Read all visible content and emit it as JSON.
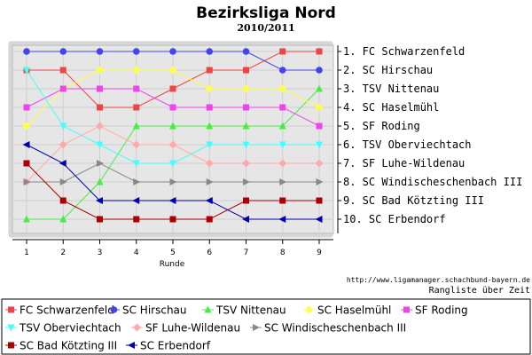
{
  "chart_data": {
    "type": "line",
    "title": "Bezirksliga Nord",
    "subtitle": "2010/2011",
    "xlabel": "Runde",
    "x": [
      1,
      2,
      3,
      4,
      5,
      6,
      7,
      8,
      9
    ],
    "ylim": [
      1,
      10
    ],
    "y_inverted": true,
    "grid": true,
    "ranking_labels": [
      "1. FC Schwarzenfeld",
      "2. SC Hirschau",
      "3. TSV Nittenau",
      "4. SC Haselmühl",
      "5. SF Roding",
      "6. TSV Oberviechtach",
      "7. SF Luhe-Wildenau",
      "8. SC Windischeschenbach III",
      "9. SC Bad Kötzting III",
      "10. SC Erbendorf"
    ],
    "source_url": "http://www.ligamanager.schachbund-bayern.de",
    "caption": "Rangliste über Zeit",
    "legend_position": "bottom",
    "series": [
      {
        "name": "FC Schwarzenfeld",
        "color": "#ee4444",
        "marker": "square",
        "values": [
          2,
          2,
          4,
          4,
          3,
          2,
          2,
          1,
          1
        ]
      },
      {
        "name": "SC Hirschau",
        "color": "#4444ee",
        "marker": "circle",
        "values": [
          1,
          1,
          1,
          1,
          1,
          1,
          1,
          2,
          2
        ]
      },
      {
        "name": "TSV Nittenau",
        "color": "#44ee44",
        "marker": "triangle-up",
        "values": [
          10,
          10,
          8,
          5,
          5,
          5,
          5,
          5,
          3
        ]
      },
      {
        "name": "SC Haselmühl",
        "color": "#ffff44",
        "marker": "diamond",
        "values": [
          5,
          3,
          2,
          2,
          2,
          3,
          3,
          3,
          4
        ]
      },
      {
        "name": "SF Roding",
        "color": "#ee44ee",
        "marker": "square",
        "values": [
          4,
          3,
          3,
          3,
          4,
          4,
          4,
          4,
          5
        ]
      },
      {
        "name": "TSV Oberviechtach",
        "color": "#44ffff",
        "marker": "triangle-down",
        "values": [
          2,
          5,
          6,
          7,
          7,
          6,
          6,
          6,
          6
        ]
      },
      {
        "name": "SF Luhe-Wildenau",
        "color": "#ffaaaa",
        "marker": "diamond",
        "values": [
          8,
          6,
          5,
          6,
          6,
          7,
          7,
          7,
          7
        ]
      },
      {
        "name": "SC Windischeschenbach III",
        "color": "#888888",
        "marker": "triangle-right",
        "values": [
          8,
          8,
          7,
          8,
          8,
          8,
          8,
          8,
          8
        ]
      },
      {
        "name": "SC Bad Kötzting III",
        "color": "#aa0000",
        "marker": "square",
        "values": [
          7,
          9,
          10,
          10,
          10,
          10,
          9,
          9,
          9
        ]
      },
      {
        "name": "SC Erbendorf",
        "color": "#0000aa",
        "marker": "triangle-left",
        "values": [
          6,
          7,
          9,
          9,
          9,
          9,
          10,
          10,
          10
        ]
      }
    ]
  }
}
